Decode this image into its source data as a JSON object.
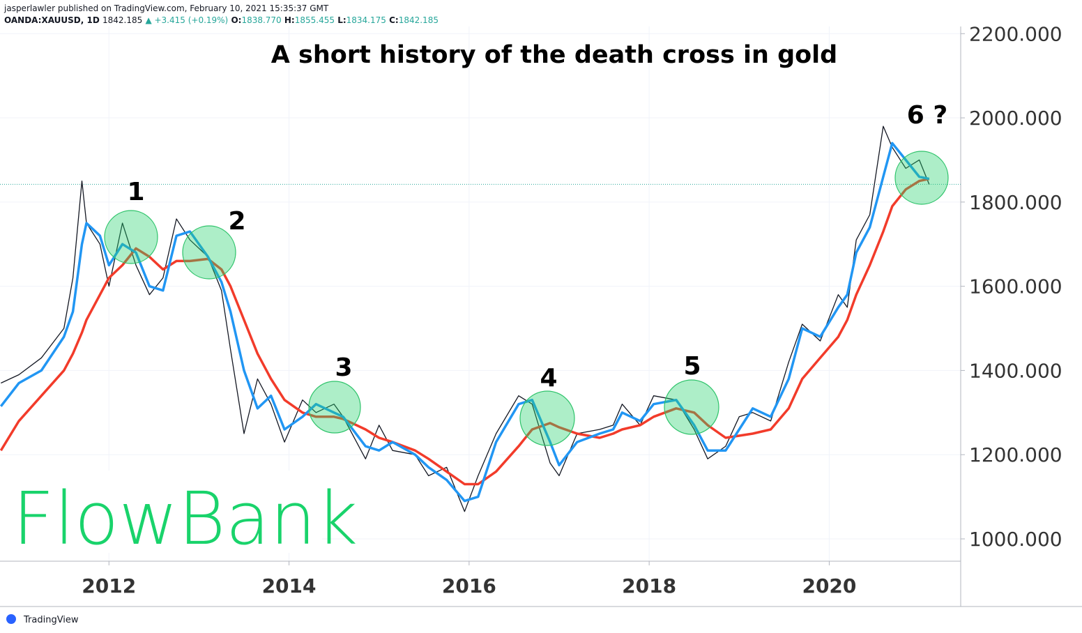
{
  "header": {
    "author_line": "jasperlawler published on TradingView.com, February 10, 2021 15:35:37 GMT",
    "symbol": "OANDA:XAUUSD, 1D",
    "last": "1842.185",
    "change": "▲ +3.415 (+0.19%)",
    "open_label": "O:",
    "open": "1838.770",
    "high_label": "H:",
    "high": "1855.455",
    "low_label": "L:",
    "low": "1834.175",
    "close_label": "C:",
    "close": 1842.185
  },
  "logo": "FlowBank",
  "footer": "TradingView",
  "chart_data": {
    "type": "line",
    "title": "A short history of the death cross in gold",
    "annotations": [
      "1",
      "2",
      "3",
      "4",
      "5",
      "6 ?"
    ],
    "x": [
      2010.8,
      2011.0,
      2011.25,
      2011.5,
      2011.6,
      2011.7,
      2011.75,
      2011.9,
      2012.0,
      2012.15,
      2012.3,
      2012.45,
      2012.6,
      2012.75,
      2012.9,
      2013.1,
      2013.25,
      2013.35,
      2013.5,
      2013.65,
      2013.8,
      2013.95,
      2014.15,
      2014.3,
      2014.5,
      2014.6,
      2014.85,
      2015.0,
      2015.15,
      2015.4,
      2015.55,
      2015.75,
      2015.95,
      2016.1,
      2016.3,
      2016.55,
      2016.7,
      2016.9,
      2017.0,
      2017.2,
      2017.45,
      2017.6,
      2017.7,
      2017.9,
      2018.05,
      2018.3,
      2018.5,
      2018.65,
      2018.85,
      2019.0,
      2019.15,
      2019.35,
      2019.55,
      2019.7,
      2019.9,
      2020.1,
      2020.2,
      2020.3,
      2020.45,
      2020.6,
      2020.7,
      2020.85,
      2021.0,
      2021.11
    ],
    "series": [
      {
        "color": "#131722",
        "width": 1.3,
        "values": [
          1370,
          1390,
          1430,
          1500,
          1620,
          1850,
          1750,
          1700,
          1600,
          1750,
          1650,
          1580,
          1620,
          1760,
          1710,
          1670,
          1590,
          1450,
          1250,
          1380,
          1320,
          1230,
          1330,
          1300,
          1320,
          1290,
          1190,
          1270,
          1210,
          1200,
          1150,
          1170,
          1065,
          1150,
          1250,
          1340,
          1320,
          1180,
          1150,
          1250,
          1260,
          1270,
          1320,
          1270,
          1340,
          1330,
          1260,
          1190,
          1220,
          1290,
          1300,
          1280,
          1420,
          1510,
          1470,
          1580,
          1550,
          1710,
          1770,
          1980,
          1930,
          1880,
          1900,
          1842
        ]
      },
      {
        "color": "#f23b2a",
        "width": 3.5,
        "values": [
          1210,
          1280,
          1340,
          1400,
          1440,
          1490,
          1520,
          1580,
          1620,
          1650,
          1690,
          1670,
          1640,
          1660,
          1660,
          1665,
          1640,
          1600,
          1520,
          1440,
          1380,
          1330,
          1300,
          1290,
          1290,
          1285,
          1260,
          1240,
          1230,
          1210,
          1190,
          1160,
          1130,
          1130,
          1160,
          1220,
          1260,
          1275,
          1265,
          1250,
          1240,
          1250,
          1260,
          1270,
          1290,
          1310,
          1300,
          1270,
          1240,
          1245,
          1250,
          1260,
          1310,
          1380,
          1430,
          1480,
          1520,
          1580,
          1650,
          1730,
          1790,
          1830,
          1850,
          1855
        ]
      },
      {
        "color": "#2196f3",
        "width": 3.5,
        "values": [
          1315,
          1370,
          1400,
          1480,
          1540,
          1700,
          1750,
          1720,
          1650,
          1700,
          1680,
          1600,
          1590,
          1720,
          1730,
          1670,
          1610,
          1540,
          1400,
          1310,
          1340,
          1260,
          1290,
          1320,
          1300,
          1290,
          1220,
          1210,
          1230,
          1200,
          1170,
          1140,
          1090,
          1100,
          1230,
          1320,
          1330,
          1230,
          1175,
          1230,
          1250,
          1260,
          1300,
          1280,
          1320,
          1330,
          1270,
          1210,
          1210,
          1260,
          1310,
          1290,
          1380,
          1500,
          1480,
          1550,
          1580,
          1680,
          1740,
          1860,
          1940,
          1900,
          1860,
          1855
        ]
      }
    ],
    "xlim": [
      2010.79,
      2021.46
    ],
    "xticks": [
      2012,
      2014,
      2016,
      2018,
      2020
    ],
    "ylim": [
      947,
      2217
    ],
    "yticks": [
      {
        "value": 1000,
        "label": "1000.000"
      },
      {
        "value": 1200,
        "label": "1200.000"
      },
      {
        "value": 1400,
        "label": "1400.000"
      },
      {
        "value": 1600,
        "label": "1600.000"
      },
      {
        "value": 1800,
        "label": "1800.000"
      },
      {
        "value": 2000,
        "label": "2000.000"
      },
      {
        "value": 2200,
        "label": "2200.000"
      }
    ],
    "grid": true
  }
}
